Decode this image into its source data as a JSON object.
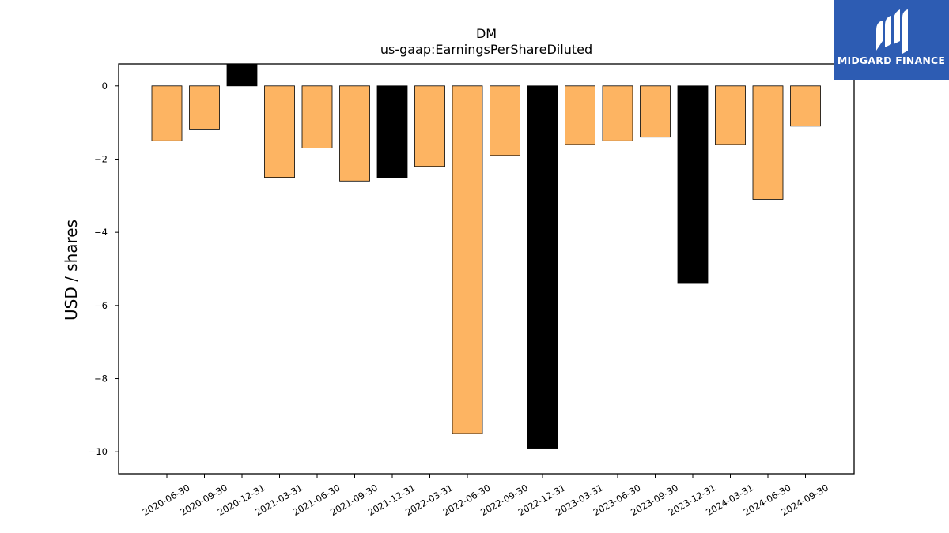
{
  "chart_data": {
    "type": "bar",
    "title": "DM",
    "subtitle": "us-gaap:EarningsPerShareDiluted",
    "xlabel": "",
    "ylabel": "USD / shares",
    "ylim": [
      -10.6,
      0.6
    ],
    "yticks": [
      0,
      -2,
      -4,
      -6,
      -8,
      -10
    ],
    "ytick_labels": [
      "0",
      "−2",
      "−4",
      "−6",
      "−8",
      "−10"
    ],
    "categories": [
      "2020-06-30",
      "2020-09-30",
      "2020-12-31",
      "2021-03-31",
      "2021-06-30",
      "2021-09-30",
      "2021-12-31",
      "2022-03-31",
      "2022-06-30",
      "2022-09-30",
      "2022-12-31",
      "2023-03-31",
      "2023-06-30",
      "2023-09-30",
      "2023-12-31",
      "2024-03-31",
      "2024-06-30",
      "2024-09-30"
    ],
    "values": [
      -1.5,
      -1.2,
      0.6,
      -2.5,
      -1.7,
      -2.6,
      -2.5,
      -2.2,
      -9.5,
      -1.9,
      -9.9,
      -1.6,
      -1.5,
      -1.4,
      -5.4,
      -1.6,
      -3.1,
      -1.1
    ],
    "bar_colors": [
      "#fdb462",
      "#fdb462",
      "#000000",
      "#fdb462",
      "#fdb462",
      "#fdb462",
      "#000000",
      "#fdb462",
      "#fdb462",
      "#fdb462",
      "#000000",
      "#fdb462",
      "#fdb462",
      "#fdb462",
      "#000000",
      "#fdb462",
      "#fdb462",
      "#fdb462"
    ],
    "grid": false,
    "legend": "none"
  },
  "logo": {
    "text": "MIDGARD FINANCE",
    "color": "#2d5cb3"
  }
}
